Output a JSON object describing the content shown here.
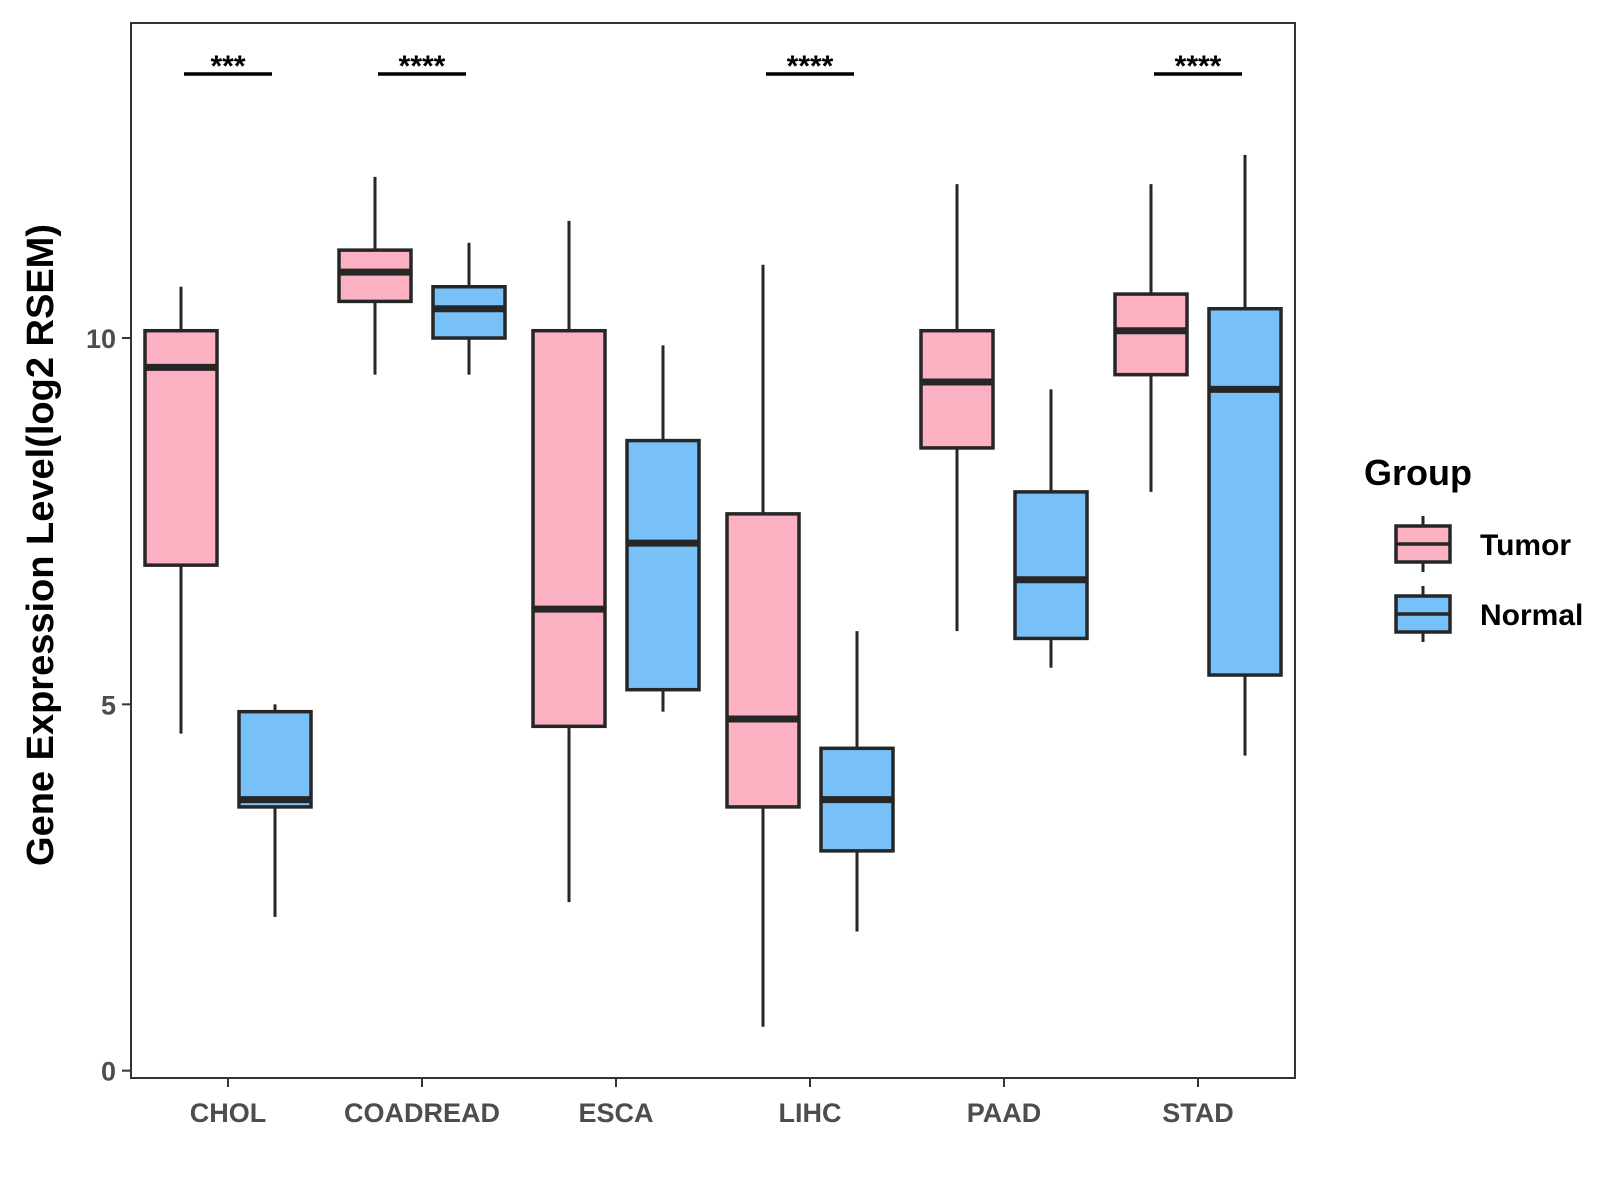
{
  "chart_data": {
    "type": "boxplot",
    "title": "",
    "xlabel": "",
    "ylabel": "Gene Expression Level(log2 RSEM)",
    "ylim": [
      -0.1,
      14.3
    ],
    "yticks": [
      0,
      5,
      10
    ],
    "ytick_labels": [
      "0",
      "5",
      "10"
    ],
    "grid": false,
    "legend": {
      "title": "Group",
      "position": "right",
      "entries": [
        "Tumor",
        "Normal"
      ]
    },
    "colors": {
      "Tumor": "#fbb1c2",
      "Normal": "#77c1f8",
      "stroke": "#262626"
    },
    "categories": [
      "CHOL",
      "COADREAD",
      "ESCA",
      "LIHC",
      "PAAD",
      "STAD"
    ],
    "series": [
      {
        "name": "Tumor",
        "boxes": [
          {
            "min": 4.6,
            "q1": 6.9,
            "median": 9.6,
            "q3": 10.1,
            "max": 10.7
          },
          {
            "min": 9.5,
            "q1": 10.5,
            "median": 10.9,
            "q3": 11.2,
            "max": 12.2
          },
          {
            "min": 2.3,
            "q1": 4.7,
            "median": 6.3,
            "q3": 10.1,
            "max": 11.6
          },
          {
            "min": 0.6,
            "q1": 3.6,
            "median": 4.8,
            "q3": 7.6,
            "max": 11.0
          },
          {
            "min": 6.0,
            "q1": 8.5,
            "median": 9.4,
            "q3": 10.1,
            "max": 12.1
          },
          {
            "min": 7.9,
            "q1": 9.5,
            "median": 10.1,
            "q3": 10.6,
            "max": 12.1
          }
        ]
      },
      {
        "name": "Normal",
        "boxes": [
          {
            "min": 2.1,
            "q1": 3.6,
            "median": 3.7,
            "q3": 4.9,
            "max": 5.0
          },
          {
            "min": 9.5,
            "q1": 10.0,
            "median": 10.4,
            "q3": 10.7,
            "max": 11.3
          },
          {
            "min": 4.9,
            "q1": 5.2,
            "median": 7.2,
            "q3": 8.6,
            "max": 9.9
          },
          {
            "min": 1.9,
            "q1": 3.0,
            "median": 3.7,
            "q3": 4.4,
            "max": 6.0
          },
          {
            "min": 5.5,
            "q1": 5.9,
            "median": 6.7,
            "q3": 7.9,
            "max": 9.3
          },
          {
            "min": 4.3,
            "q1": 5.4,
            "median": 9.3,
            "q3": 10.4,
            "max": 12.5
          }
        ]
      }
    ],
    "significance": [
      {
        "category": "CHOL",
        "label": "***"
      },
      {
        "category": "COADREAD",
        "label": "****"
      },
      {
        "category": "LIHC",
        "label": "****"
      },
      {
        "category": "STAD",
        "label": "****"
      }
    ]
  }
}
